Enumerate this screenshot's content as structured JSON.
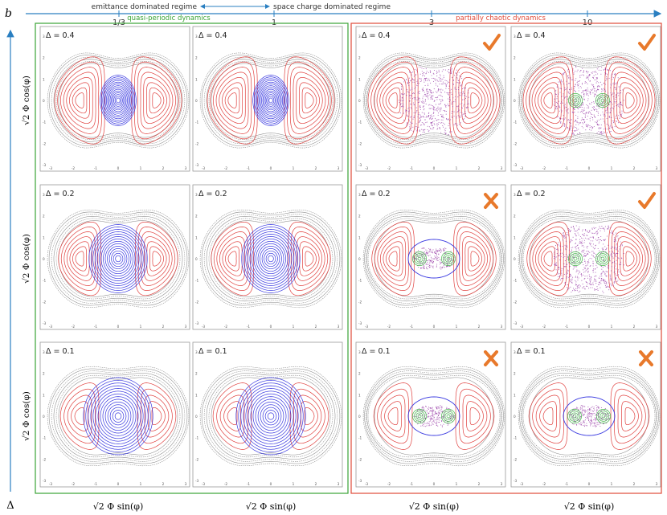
{
  "figure": {
    "panel_letter": "b",
    "corner_symbol": "Δ",
    "top_axis": {
      "ticks": [
        "1/3",
        "1",
        "3",
        "10"
      ],
      "left_regime": "emittance dominated regime",
      "right_regime": "space charge dominated regime"
    },
    "groups": {
      "left": "quasi-periodic dynamics",
      "right": "partially chaotic dynamics"
    },
    "row_label": "√2 Φ cos(φ)",
    "col_label": "√2 Φ sin(φ)",
    "tick_labels": [
      "-3",
      "-2",
      "-1",
      "0",
      "1",
      "2",
      "3"
    ],
    "colors": {
      "group_left": "#3aa335",
      "group_right": "#e04b3a",
      "axis_arrow": "#2a7fc1",
      "mark": "#e8792b",
      "outer_orbit": "#8a8a8a",
      "resonance_orbit": "#e0413f",
      "core_orbit": "#3a3ae0",
      "chaotic": "#8e2a9e",
      "island": "#44b84a"
    }
  },
  "chart_data": {
    "type": "grid of phase-space portraits",
    "xlabel": "√2 Φ sin(φ)",
    "ylabel": "√2 Φ cos(φ)",
    "xlim": [
      -3,
      3
    ],
    "ylim": [
      -3,
      3
    ],
    "columns": [
      {
        "param": "1/3",
        "group": "quasi-periodic dynamics"
      },
      {
        "param": "1",
        "group": "quasi-periodic dynamics"
      },
      {
        "param": "3",
        "group": "partially chaotic dynamics"
      },
      {
        "param": "10",
        "group": "partially chaotic dynamics"
      }
    ],
    "rows": [
      {
        "delta_label": "Δ = 0.4",
        "delta": 0.4
      },
      {
        "delta_label": "Δ = 0.2",
        "delta": 0.2
      },
      {
        "delta_label": "Δ = 0.1",
        "delta": 0.1
      }
    ],
    "marks": [
      [
        null,
        null,
        "check",
        "check"
      ],
      [
        null,
        null,
        "cross",
        "check"
      ],
      [
        null,
        null,
        "cross",
        "cross"
      ]
    ],
    "check_symbol": "✓",
    "cross_symbol": "✗"
  }
}
